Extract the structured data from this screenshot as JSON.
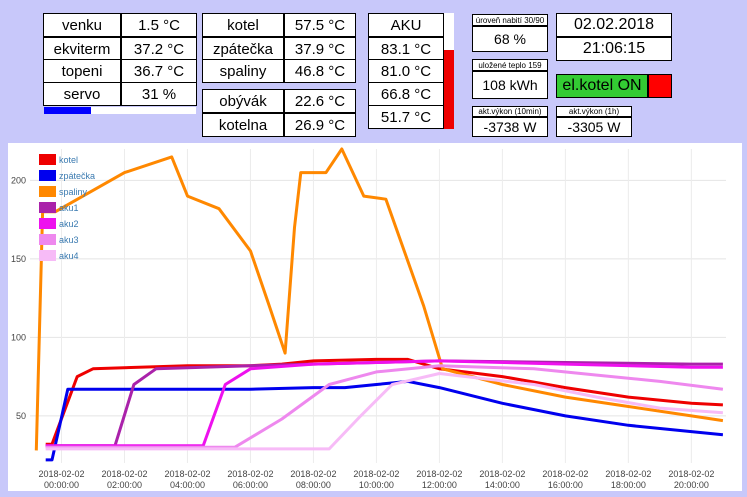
{
  "left_table": {
    "rows": [
      {
        "label": "venku",
        "value": "1.5 °C"
      },
      {
        "label": "ekviterm",
        "value": "37.2 °C"
      },
      {
        "label": "topeni",
        "value": "36.7 °C"
      },
      {
        "label": "servo",
        "value": "31 %"
      }
    ],
    "servo_level": 0.31
  },
  "middle_table": {
    "rows": [
      {
        "label": "kotel",
        "value": "57.5 °C"
      },
      {
        "label": "zpátečka",
        "value": "37.9 °C"
      },
      {
        "label": "spaliny",
        "value": "46.8 °C"
      }
    ],
    "rooms": [
      {
        "label": "obývák",
        "value": "22.6 °C"
      },
      {
        "label": "kotelna",
        "value": "26.9 °C"
      }
    ]
  },
  "aku": {
    "title": "AKU",
    "values": [
      "83.1 °C",
      "81.0 °C",
      "66.8 °C",
      "51.7 °C"
    ],
    "fill_level": 0.68
  },
  "charge": {
    "level_label": "úroveň nabití 30/90",
    "level_value": "68 %",
    "stored_label": "uložené teplo 159",
    "stored_value": "108 kWh",
    "power10_label": "akt.výkon (10min)",
    "power10_value": "-3738 W",
    "power1h_label": "akt.výkon (1h)",
    "power1h_value": "-3305 W"
  },
  "clock": {
    "date": "02.02.2018",
    "time": "21:06:15"
  },
  "elkotel": {
    "label": "el.kotel ON",
    "color": "#33cc33",
    "indicator_color": "#ff0000"
  },
  "chart_data": {
    "type": "line",
    "ylim": [
      20,
      220
    ],
    "yticks": [
      50,
      100,
      150,
      200
    ],
    "xtick_labels": [
      [
        "2018-02-02",
        "00:00:00"
      ],
      [
        "2018-02-02",
        "02:00:00"
      ],
      [
        "2018-02-02",
        "04:00:00"
      ],
      [
        "2018-02-02",
        "06:00:00"
      ],
      [
        "2018-02-02",
        "08:00:00"
      ],
      [
        "2018-02-02",
        "10:00:00"
      ],
      [
        "2018-02-02",
        "12:00:00"
      ],
      [
        "2018-02-02",
        "14:00:00"
      ],
      [
        "2018-02-02",
        "16:00:00"
      ],
      [
        "2018-02-02",
        "18:00:00"
      ],
      [
        "2018-02-02",
        "20:00:00"
      ]
    ],
    "xlim": [
      -1,
      21.1
    ],
    "series": [
      {
        "name": "kotel",
        "color": "#ee0000",
        "points": [
          [
            -0.5,
            32
          ],
          [
            -0.3,
            32
          ],
          [
            0.5,
            75
          ],
          [
            1,
            80
          ],
          [
            4,
            82
          ],
          [
            6,
            82
          ],
          [
            7,
            83
          ],
          [
            8,
            85
          ],
          [
            10,
            86
          ],
          [
            11,
            86
          ],
          [
            12,
            80
          ],
          [
            14,
            75
          ],
          [
            16,
            68
          ],
          [
            18,
            62
          ],
          [
            20,
            58
          ],
          [
            21,
            57
          ]
        ]
      },
      {
        "name": "zpátečka",
        "color": "#0000ee",
        "points": [
          [
            -0.5,
            22
          ],
          [
            -0.3,
            22
          ],
          [
            0.2,
            67
          ],
          [
            4,
            67
          ],
          [
            6,
            67
          ],
          [
            8,
            68
          ],
          [
            9,
            68
          ],
          [
            10,
            70
          ],
          [
            11,
            72
          ],
          [
            12,
            68
          ],
          [
            14,
            58
          ],
          [
            16,
            50
          ],
          [
            18,
            44
          ],
          [
            20,
            40
          ],
          [
            21,
            38
          ]
        ]
      },
      {
        "name": "spaliny",
        "color": "#ff8800",
        "points": [
          [
            -0.8,
            28
          ],
          [
            -0.6,
            180
          ],
          [
            -0.2,
            180
          ],
          [
            2,
            205
          ],
          [
            3.5,
            215
          ],
          [
            4,
            190
          ],
          [
            5,
            182
          ],
          [
            6,
            155
          ],
          [
            6.6,
            120
          ],
          [
            7.1,
            90
          ],
          [
            7.4,
            170
          ],
          [
            7.6,
            205
          ],
          [
            8.4,
            205
          ],
          [
            8.9,
            220
          ],
          [
            9.6,
            190
          ],
          [
            10.3,
            188
          ],
          [
            11.5,
            120
          ],
          [
            12.1,
            80
          ],
          [
            14,
            70
          ],
          [
            16,
            62
          ],
          [
            18,
            56
          ],
          [
            20,
            50
          ],
          [
            21,
            47
          ]
        ]
      },
      {
        "name": "aku1",
        "color": "#aa22aa",
        "points": [
          [
            -0.5,
            31
          ],
          [
            1.7,
            31
          ],
          [
            2.3,
            70
          ],
          [
            3,
            80
          ],
          [
            6,
            82
          ],
          [
            8,
            83
          ],
          [
            10,
            84
          ],
          [
            12,
            85
          ],
          [
            16,
            84
          ],
          [
            20,
            83
          ],
          [
            21,
            83
          ]
        ]
      },
      {
        "name": "aku2",
        "color": "#ee11ee",
        "points": [
          [
            -0.5,
            31
          ],
          [
            4.5,
            31
          ],
          [
            5.2,
            70
          ],
          [
            6,
            80
          ],
          [
            8,
            83
          ],
          [
            10,
            84
          ],
          [
            12,
            85
          ],
          [
            16,
            83
          ],
          [
            20,
            81
          ],
          [
            21,
            81
          ]
        ]
      },
      {
        "name": "aku3",
        "color": "#ee88ee",
        "points": [
          [
            -0.5,
            30
          ],
          [
            5.5,
            30
          ],
          [
            7,
            48
          ],
          [
            8.5,
            70
          ],
          [
            10,
            78
          ],
          [
            12,
            82
          ],
          [
            15,
            80
          ],
          [
            17,
            76
          ],
          [
            19,
            72
          ],
          [
            21,
            67
          ]
        ]
      },
      {
        "name": "aku4",
        "color": "#f7bbf7",
        "points": [
          [
            -0.5,
            29
          ],
          [
            8.5,
            29
          ],
          [
            9.5,
            50
          ],
          [
            10.5,
            70
          ],
          [
            12,
            77
          ],
          [
            15,
            70
          ],
          [
            17,
            62
          ],
          [
            19,
            55
          ],
          [
            21,
            52
          ]
        ]
      }
    ]
  }
}
